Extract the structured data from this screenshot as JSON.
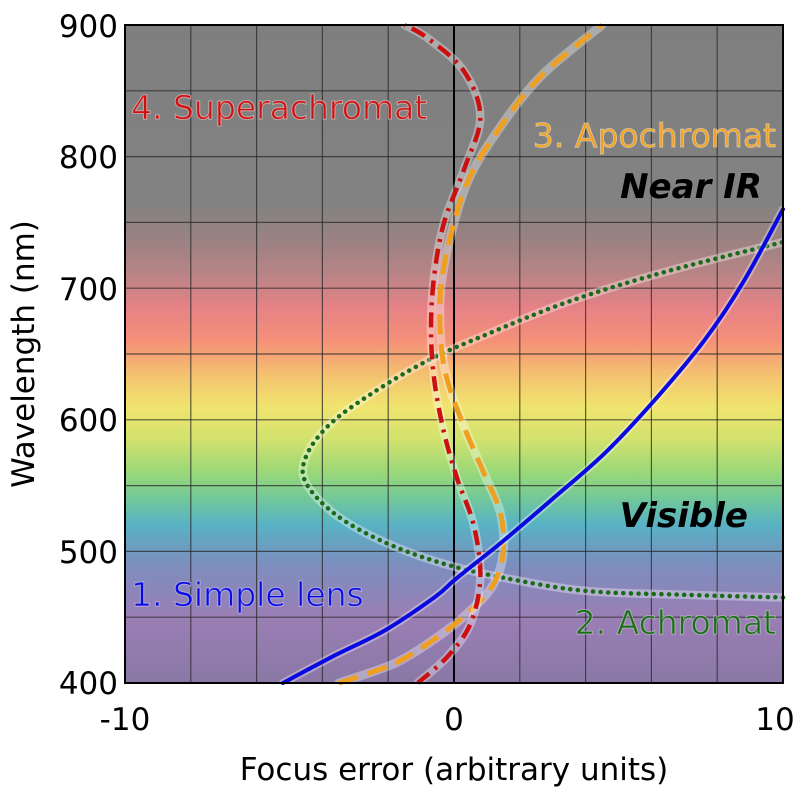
{
  "chart_data": {
    "type": "line",
    "title": "",
    "xlabel": "Focus error (arbitrary units)",
    "ylabel": "Wavelength (nm)",
    "xlim": [
      -10,
      10
    ],
    "ylim": [
      400,
      900
    ],
    "x_ticks": [
      "-10",
      "0",
      "10"
    ],
    "y_ticks": [
      "400",
      "500",
      "600",
      "700",
      "800",
      "900"
    ],
    "grid": true,
    "regions": [
      {
        "label": "Near IR"
      },
      {
        "label": "Visible"
      }
    ],
    "series": [
      {
        "name": "1. Simple lens",
        "color": "#0a0ae0",
        "style": "solid",
        "points": [
          [
            -5.2,
            400
          ],
          [
            -3.7,
            420
          ],
          [
            -2.1,
            440
          ],
          [
            -0.6,
            465
          ],
          [
            0,
            478
          ],
          [
            0.6,
            490
          ],
          [
            1.5,
            508
          ],
          [
            3,
            540
          ],
          [
            4.6,
            575
          ],
          [
            6.1,
            615
          ],
          [
            7.6,
            660
          ],
          [
            8.8,
            705
          ],
          [
            10,
            760
          ]
        ]
      },
      {
        "name": "2. Achromat",
        "color": "#1a6a1a",
        "style": "dotted",
        "points": [
          [
            10,
            465
          ],
          [
            7,
            467
          ],
          [
            4,
            470
          ],
          [
            1.5,
            480
          ],
          [
            -0.5,
            492
          ],
          [
            -2.2,
            508
          ],
          [
            -3.6,
            528
          ],
          [
            -4.5,
            552
          ],
          [
            -4.5,
            572
          ],
          [
            -3.8,
            596
          ],
          [
            -2.5,
            620
          ],
          [
            -0.8,
            645
          ],
          [
            1,
            665
          ],
          [
            3.5,
            690
          ],
          [
            6.5,
            713
          ],
          [
            10,
            735
          ]
        ]
      },
      {
        "name": "3. Apochromat",
        "color": "#f0a020",
        "style": "dashed",
        "points": [
          [
            -3.5,
            400
          ],
          [
            -1.8,
            415
          ],
          [
            -0.5,
            435
          ],
          [
            0.5,
            455
          ],
          [
            1.2,
            475
          ],
          [
            1.5,
            500
          ],
          [
            1.4,
            530
          ],
          [
            0.9,
            560
          ],
          [
            0.3,
            595
          ],
          [
            -0.2,
            630
          ],
          [
            -0.4,
            660
          ],
          [
            -0.4,
            700
          ],
          [
            -0.1,
            740
          ],
          [
            0.4,
            780
          ],
          [
            1.2,
            815
          ],
          [
            2.6,
            860
          ],
          [
            4.5,
            900
          ]
        ]
      },
      {
        "name": "4. Superachromat",
        "color": "#cc1010",
        "style": "dashdot",
        "points": [
          [
            -1.1,
            400
          ],
          [
            -0.2,
            420
          ],
          [
            0.5,
            445
          ],
          [
            0.8,
            480
          ],
          [
            0.6,
            520
          ],
          [
            0.1,
            555
          ],
          [
            -0.3,
            590
          ],
          [
            -0.6,
            630
          ],
          [
            -0.7,
            670
          ],
          [
            -0.6,
            710
          ],
          [
            -0.3,
            750
          ],
          [
            0.3,
            790
          ],
          [
            0.8,
            830
          ],
          [
            0.3,
            865
          ],
          [
            -0.8,
            890
          ],
          [
            -1.5,
            900
          ]
        ]
      }
    ]
  }
}
